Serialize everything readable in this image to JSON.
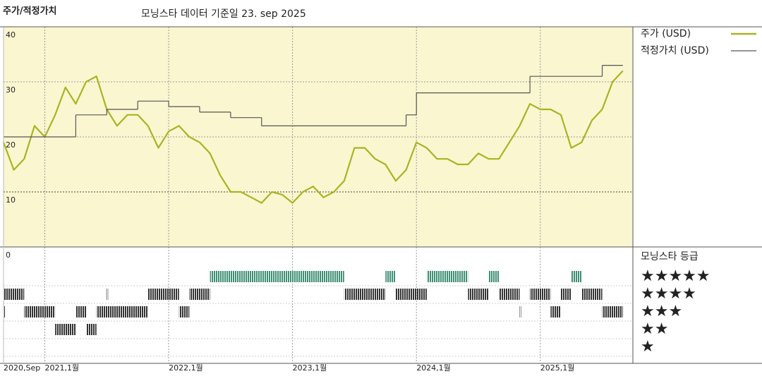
{
  "chart_data": {
    "type": "line",
    "title": "주가/적정가치",
    "subtitle": "모닝스타 데이터 기준일 23. sep 2025",
    "x": [
      "2020-09",
      "2020-10",
      "2020-11",
      "2020-12",
      "2021-01",
      "2021-02",
      "2021-03",
      "2021-04",
      "2021-05",
      "2021-06",
      "2021-07",
      "2021-08",
      "2021-09",
      "2021-10",
      "2021-11",
      "2021-12",
      "2022-01",
      "2022-02",
      "2022-03",
      "2022-04",
      "2022-05",
      "2022-06",
      "2022-07",
      "2022-08",
      "2022-09",
      "2022-10",
      "2022-11",
      "2022-12",
      "2023-01",
      "2023-02",
      "2023-03",
      "2023-04",
      "2023-05",
      "2023-06",
      "2023-07",
      "2023-08",
      "2023-09",
      "2023-10",
      "2023-11",
      "2023-12",
      "2024-01",
      "2024-02",
      "2024-03",
      "2024-04",
      "2024-05",
      "2024-06",
      "2024-07",
      "2024-08",
      "2024-09",
      "2024-10",
      "2024-11",
      "2024-12",
      "2025-01",
      "2025-02",
      "2025-03",
      "2025-04",
      "2025-05",
      "2025-06",
      "2025-07",
      "2025-08",
      "2025-09"
    ],
    "series": [
      {
        "name": "주가 (USD)",
        "color": "#a9b324",
        "values": [
          19,
          14,
          16,
          22,
          20,
          24,
          29,
          26,
          30,
          31,
          25,
          22,
          24,
          24,
          22,
          18,
          21,
          22,
          20,
          19,
          17,
          13,
          10,
          10,
          9,
          8,
          10,
          9.5,
          8,
          10,
          11,
          9,
          10,
          12,
          18,
          18,
          16,
          15,
          12,
          14,
          19,
          18,
          16,
          16,
          15,
          15,
          17,
          16,
          16,
          19,
          22,
          26,
          25,
          25,
          24,
          18,
          19,
          23,
          25,
          30,
          32
        ]
      },
      {
        "name": "적정가치 (USD)",
        "color": "#555555",
        "step": true,
        "x": [
          "2020-09",
          "2021-04",
          "2021-07",
          "2021-10",
          "2022-01",
          "2022-04",
          "2022-07",
          "2022-10",
          "2023-12",
          "2024-01",
          "2024-12",
          "2025-07"
        ],
        "values": [
          20,
          24,
          25,
          26.5,
          25.5,
          24.5,
          23.5,
          22,
          24,
          28,
          31,
          33
        ]
      }
    ],
    "ylim": [
      0,
      40
    ],
    "yticks": [
      0,
      10,
      20,
      30,
      40
    ],
    "xticks": [
      {
        "value": "2020-09",
        "label": "2020,Sep"
      },
      {
        "value": "2021-01",
        "label": "2021,1월"
      },
      {
        "value": "2022-01",
        "label": "2022,1월"
      },
      {
        "value": "2023-01",
        "label": "2023,1월"
      },
      {
        "value": "2024-01",
        "label": "2024,1월"
      },
      {
        "value": "2025-01",
        "label": "2025,1월"
      }
    ],
    "grid": true,
    "rating_title": "모닝스타 등급",
    "rating_labels": [
      {
        "stars": 5,
        "label": "★★★★★"
      },
      {
        "stars": 4,
        "label": "★★★★"
      },
      {
        "stars": 3,
        "label": "★★★"
      },
      {
        "stars": 2,
        "label": "★★"
      },
      {
        "stars": 1,
        "label": "★"
      }
    ],
    "rating_colors": {
      "high": "#3f8f73",
      "normal": "#333333"
    },
    "ratings": [
      {
        "stars": 5,
        "start": "2022-05",
        "end": "2023-06"
      },
      {
        "stars": 5,
        "start": "2023-10",
        "end": "2023-11"
      },
      {
        "stars": 5,
        "start": "2024-02",
        "end": "2024-06"
      },
      {
        "stars": 5,
        "start": "2024-08",
        "end": "2024-09"
      },
      {
        "stars": 5,
        "start": "2025-04",
        "end": "2025-05"
      },
      {
        "stars": 4,
        "start": "2020-09",
        "end": "2020-11"
      },
      {
        "stars": 4,
        "start": "2021-07",
        "end": "2021-07"
      },
      {
        "stars": 4,
        "start": "2021-11",
        "end": "2022-02"
      },
      {
        "stars": 4,
        "start": "2022-03",
        "end": "2022-05"
      },
      {
        "stars": 4,
        "start": "2023-06",
        "end": "2023-10"
      },
      {
        "stars": 4,
        "start": "2023-11",
        "end": "2024-02"
      },
      {
        "stars": 4,
        "start": "2024-06",
        "end": "2024-08"
      },
      {
        "stars": 4,
        "start": "2024-09",
        "end": "2024-11"
      },
      {
        "stars": 4,
        "start": "2024-12",
        "end": "2025-02"
      },
      {
        "stars": 4,
        "start": "2025-03",
        "end": "2025-04"
      },
      {
        "stars": 4,
        "start": "2025-05",
        "end": "2025-07"
      },
      {
        "stars": 3,
        "start": "2020-09",
        "end": "2020-09"
      },
      {
        "stars": 3,
        "start": "2020-11",
        "end": "2021-02"
      },
      {
        "stars": 3,
        "start": "2021-04",
        "end": "2021-05"
      },
      {
        "stars": 3,
        "start": "2021-06",
        "end": "2021-11"
      },
      {
        "stars": 3,
        "start": "2022-02",
        "end": "2022-03"
      },
      {
        "stars": 3,
        "start": "2024-11",
        "end": "2024-11"
      },
      {
        "stars": 3,
        "start": "2025-02",
        "end": "2025-03"
      },
      {
        "stars": 3,
        "start": "2025-07",
        "end": "2025-09"
      },
      {
        "stars": 2,
        "start": "2021-02",
        "end": "2021-04"
      },
      {
        "stars": 2,
        "start": "2021-05",
        "end": "2021-06"
      }
    ]
  }
}
